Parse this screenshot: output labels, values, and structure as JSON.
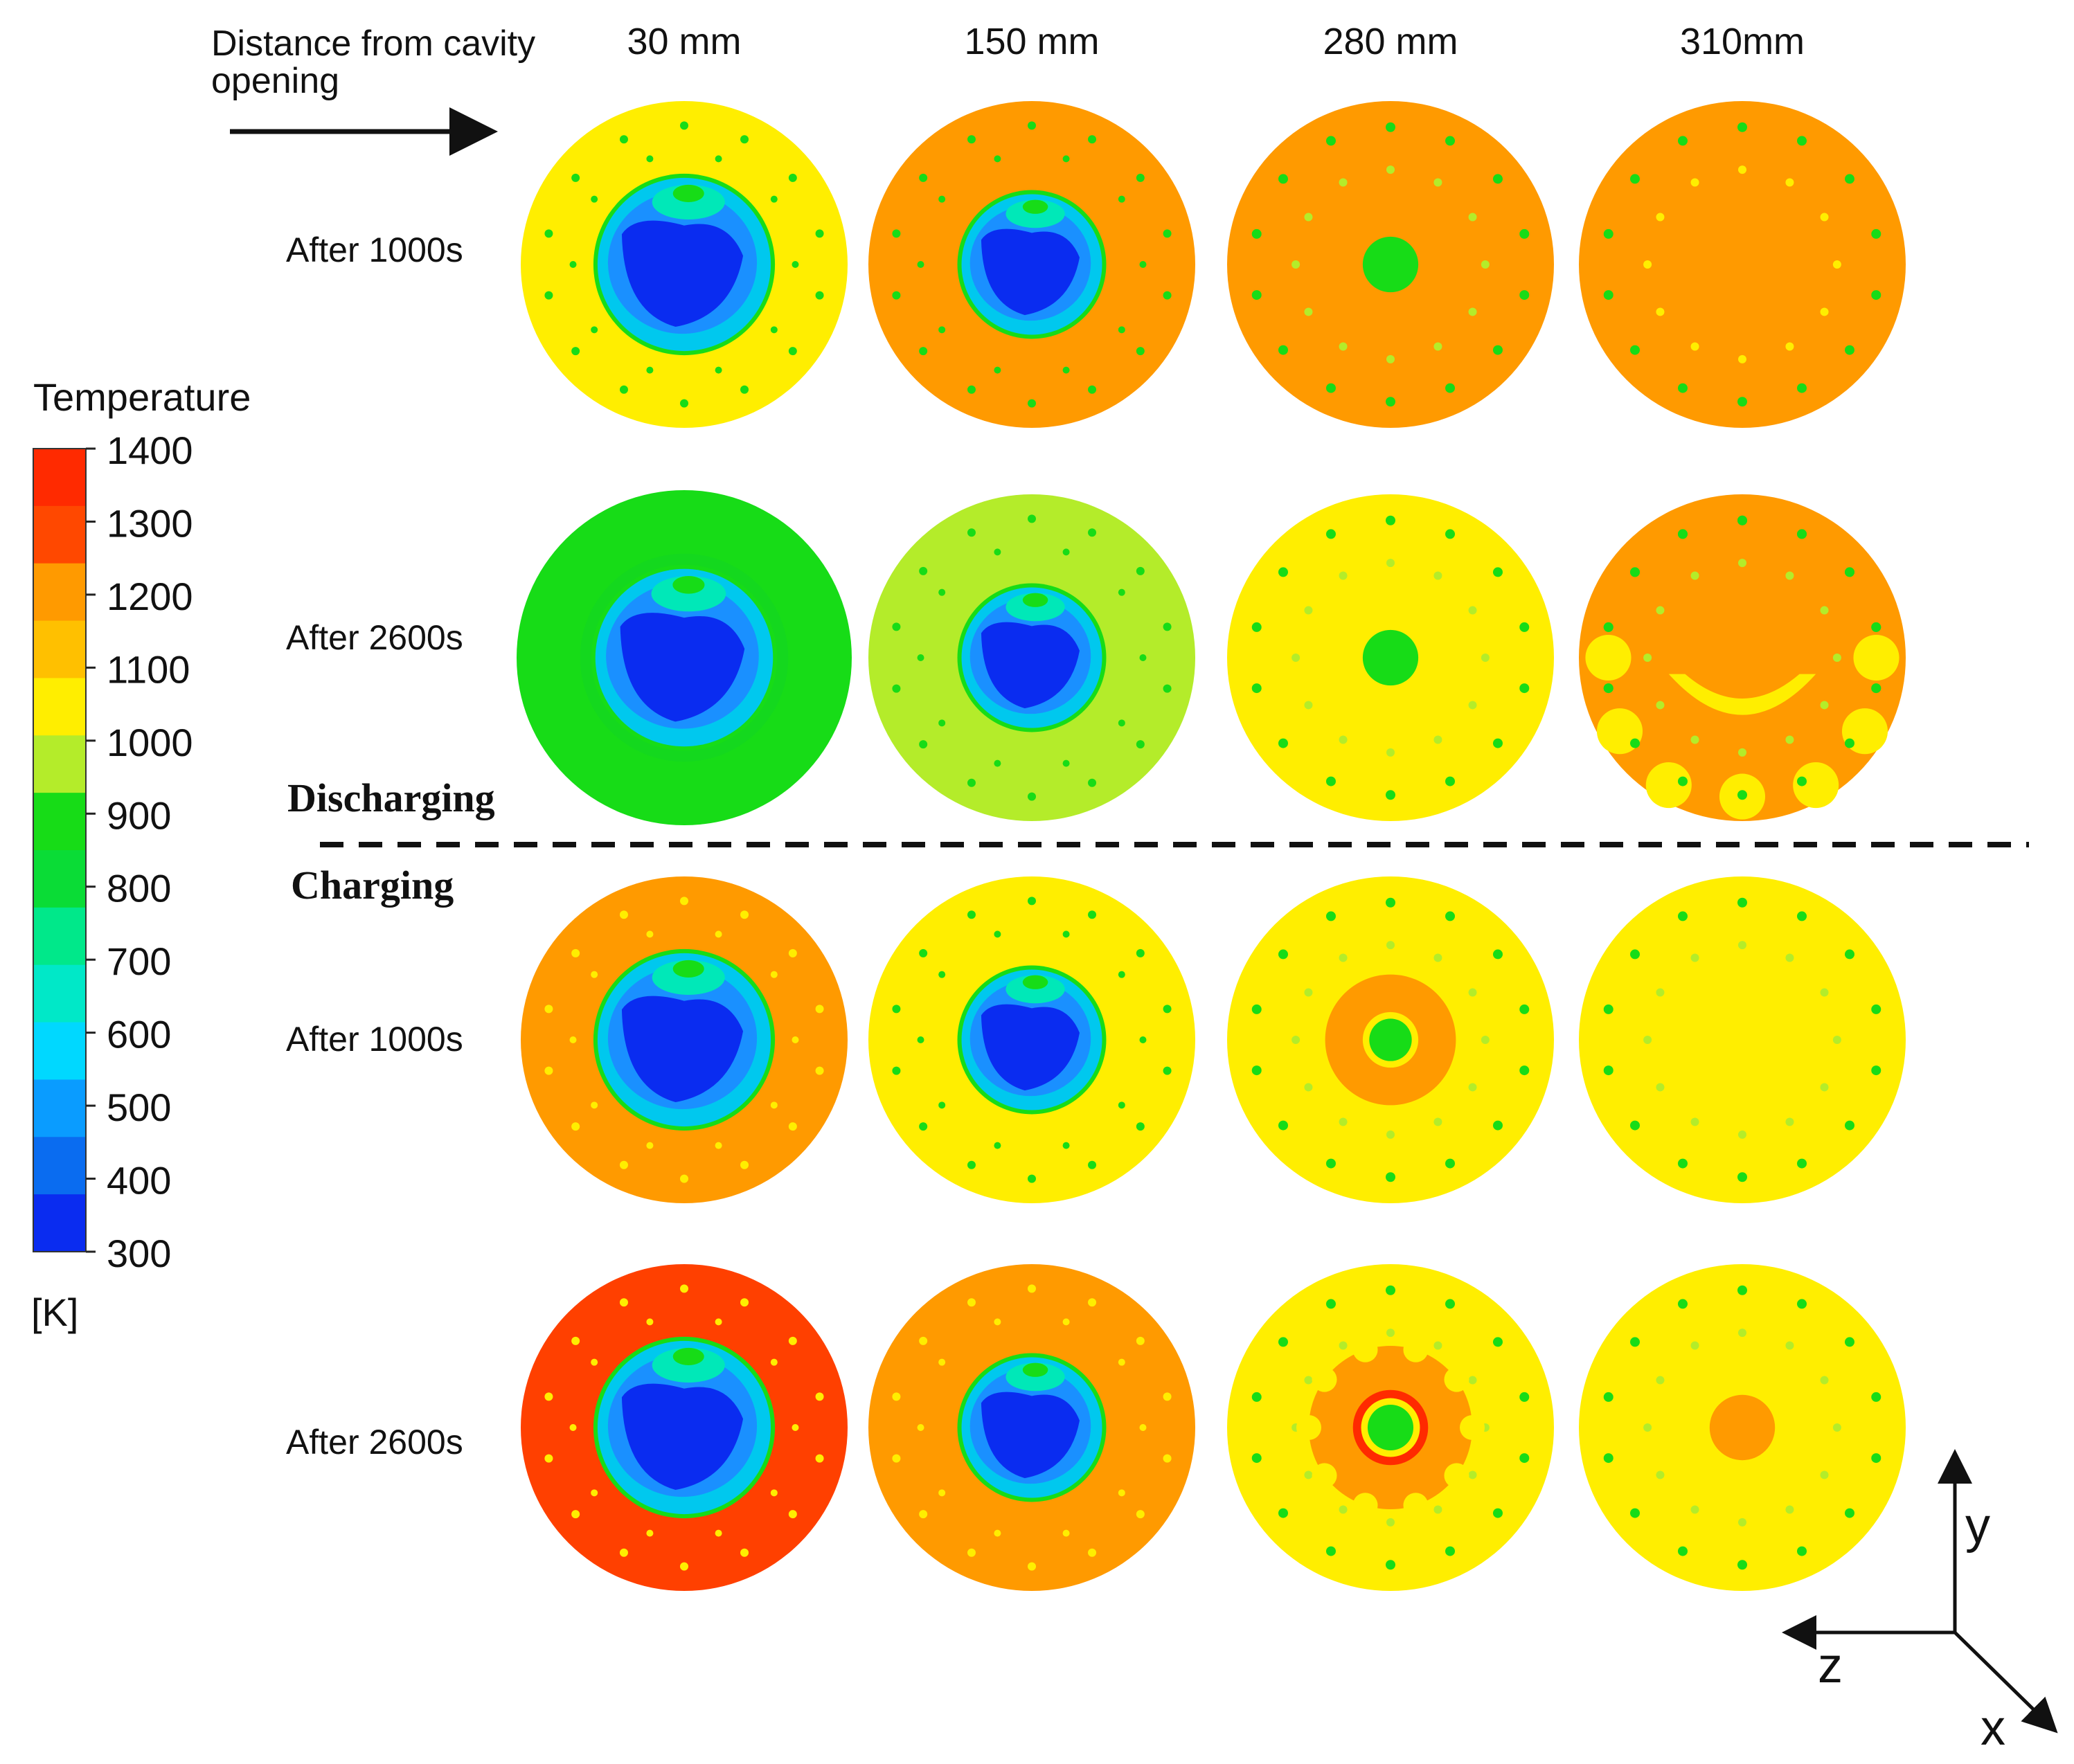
{
  "header": {
    "distance_label_line1": "Distance from cavity",
    "distance_label_line2": "opening",
    "columns": [
      "30 mm",
      "150 mm",
      "280 mm",
      "310mm"
    ]
  },
  "rows": [
    {
      "label": "After 1000s"
    },
    {
      "label": "After 2600s"
    },
    {
      "label": "After 1000s"
    },
    {
      "label": "After 2600s"
    }
  ],
  "sections": {
    "discharging": "Discharging",
    "charging": "Charging"
  },
  "colorbar": {
    "title": "Temperature",
    "unit": "[K]",
    "ticks": [
      "1400",
      "1300",
      "1200",
      "1100",
      "1000",
      "900",
      "800",
      "700",
      "600",
      "500",
      "400",
      "300"
    ],
    "colors": [
      "#ff2a00",
      "#ff4800",
      "#ff9a00",
      "#ffc000",
      "#ffee00",
      "#b4ec2a",
      "#17dc17",
      "#0adc36",
      "#00e88a",
      "#00e8c8",
      "#00d8ff",
      "#0a9cff",
      "#0a6cf0",
      "#0a2cf0"
    ]
  },
  "axes": {
    "y": "y",
    "z": "z",
    "x": "x"
  },
  "palette": {
    "yellow": "#ffee00",
    "orange": "#ff9a00",
    "red": "#ff4000",
    "green": "#17dc17",
    "light_green": "#b4ec2a",
    "cavity_outer": "#00c8ee",
    "cavity_mid": "#1a90ff",
    "cavity_core": "#0a2cf0",
    "cavity_top": "#00e8b8"
  },
  "panels": [
    {
      "row": 0,
      "col": 0,
      "bg": "yellow",
      "core": "cavity",
      "holes": "green"
    },
    {
      "row": 0,
      "col": 1,
      "bg": "orange",
      "core": "cavity",
      "holes": "green"
    },
    {
      "row": 0,
      "col": 2,
      "bg": "orange",
      "core": "green-dot",
      "holes": "green"
    },
    {
      "row": 0,
      "col": 3,
      "bg": "orange",
      "core": "none",
      "holes": "green"
    },
    {
      "row": 1,
      "col": 0,
      "bg": "green",
      "core": "cavity",
      "holes": "none"
    },
    {
      "row": 1,
      "col": 1,
      "bg": "light_green",
      "core": "cavity",
      "holes": "green"
    },
    {
      "row": 1,
      "col": 2,
      "bg": "yellow",
      "core": "green-dot",
      "holes": "green"
    },
    {
      "row": 1,
      "col": 3,
      "bg": "orange",
      "core": "yellow-band",
      "holes": "green"
    },
    {
      "row": 2,
      "col": 0,
      "bg": "orange",
      "core": "cavity",
      "holes": "yellow"
    },
    {
      "row": 2,
      "col": 1,
      "bg": "yellow",
      "core": "cavity",
      "holes": "green"
    },
    {
      "row": 2,
      "col": 2,
      "bg": "yellow",
      "core": "orange-ring",
      "holes": "green"
    },
    {
      "row": 2,
      "col": 3,
      "bg": "yellow",
      "core": "none",
      "holes": "green"
    },
    {
      "row": 3,
      "col": 0,
      "bg": "red",
      "core": "cavity",
      "holes": "yellow"
    },
    {
      "row": 3,
      "col": 1,
      "bg": "orange",
      "core": "cavity",
      "holes": "yellow"
    },
    {
      "row": 3,
      "col": 2,
      "bg": "yellow",
      "core": "gear-ring",
      "holes": "green"
    },
    {
      "row": 3,
      "col": 3,
      "bg": "yellow",
      "core": "orange-dot",
      "holes": "green"
    }
  ]
}
